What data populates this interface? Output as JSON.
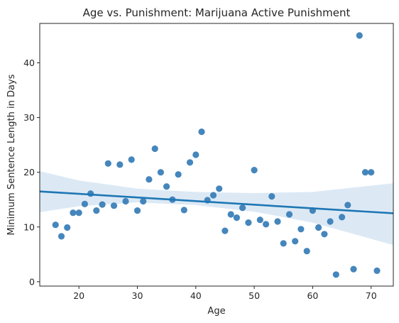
{
  "chart_data": {
    "type": "scatter",
    "title": "Age vs. Punishment: Marijuana Active Punishment",
    "xlabel": "Age",
    "ylabel": "Minimum Sentence Length in Days",
    "xlim": [
      13.3,
      73.8
    ],
    "ylim": [
      -0.8,
      47.2
    ],
    "xticks": [
      20,
      30,
      40,
      50,
      60,
      70
    ],
    "yticks": [
      0,
      10,
      20,
      30,
      40
    ],
    "grid": false,
    "point_color": "#3b7fb8",
    "line_color": "#1f77b4",
    "band_color": "#c5dbee",
    "points": [
      {
        "x": 16,
        "y": 10.4
      },
      {
        "x": 17,
        "y": 8.3
      },
      {
        "x": 18,
        "y": 9.9
      },
      {
        "x": 19,
        "y": 12.6
      },
      {
        "x": 20,
        "y": 12.6
      },
      {
        "x": 21,
        "y": 14.2
      },
      {
        "x": 22,
        "y": 16.1
      },
      {
        "x": 23,
        "y": 13.0
      },
      {
        "x": 24,
        "y": 14.1
      },
      {
        "x": 25,
        "y": 21.6
      },
      {
        "x": 26,
        "y": 13.9
      },
      {
        "x": 27,
        "y": 21.4
      },
      {
        "x": 28,
        "y": 14.7
      },
      {
        "x": 29,
        "y": 22.3
      },
      {
        "x": 30,
        "y": 13.0
      },
      {
        "x": 31,
        "y": 14.7
      },
      {
        "x": 32,
        "y": 18.7
      },
      {
        "x": 33,
        "y": 24.3
      },
      {
        "x": 34,
        "y": 20.0
      },
      {
        "x": 35,
        "y": 17.4
      },
      {
        "x": 36,
        "y": 15.0
      },
      {
        "x": 37,
        "y": 19.6
      },
      {
        "x": 38,
        "y": 13.1
      },
      {
        "x": 39,
        "y": 21.8
      },
      {
        "x": 40,
        "y": 23.2
      },
      {
        "x": 41,
        "y": 27.4
      },
      {
        "x": 42,
        "y": 14.9
      },
      {
        "x": 43,
        "y": 15.8
      },
      {
        "x": 44,
        "y": 17.0
      },
      {
        "x": 45,
        "y": 9.3
      },
      {
        "x": 46,
        "y": 12.3
      },
      {
        "x": 47,
        "y": 11.7
      },
      {
        "x": 48,
        "y": 13.5
      },
      {
        "x": 49,
        "y": 10.8
      },
      {
        "x": 50,
        "y": 20.4
      },
      {
        "x": 51,
        "y": 11.3
      },
      {
        "x": 52,
        "y": 10.5
      },
      {
        "x": 53,
        "y": 15.6
      },
      {
        "x": 54,
        "y": 11.0
      },
      {
        "x": 55,
        "y": 7.0
      },
      {
        "x": 56,
        "y": 12.3
      },
      {
        "x": 57,
        "y": 7.4
      },
      {
        "x": 58,
        "y": 9.6
      },
      {
        "x": 59,
        "y": 5.6
      },
      {
        "x": 60,
        "y": 13.0
      },
      {
        "x": 61,
        "y": 9.9
      },
      {
        "x": 62,
        "y": 8.7
      },
      {
        "x": 63,
        "y": 11.0
      },
      {
        "x": 64,
        "y": 1.3
      },
      {
        "x": 65,
        "y": 11.8
      },
      {
        "x": 66,
        "y": 14.0
      },
      {
        "x": 67,
        "y": 2.3
      },
      {
        "x": 68,
        "y": 45.0
      },
      {
        "x": 69,
        "y": 20.0
      },
      {
        "x": 70,
        "y": 20.0
      },
      {
        "x": 71,
        "y": 2.0
      }
    ],
    "regression": {
      "x": [
        13.3,
        73.8
      ],
      "y": [
        16.5,
        12.5
      ]
    },
    "confidence_band": {
      "x": [
        13.3,
        20,
        30,
        40,
        50,
        60,
        73.8
      ],
      "lower": [
        12.7,
        13.8,
        14.5,
        14.0,
        12.8,
        10.8,
        6.7
      ],
      "upper": [
        20.2,
        18.5,
        17.0,
        16.4,
        16.2,
        16.4,
        18.0
      ]
    }
  }
}
